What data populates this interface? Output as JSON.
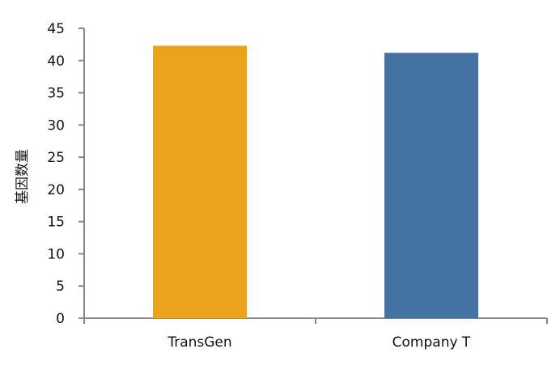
{
  "chart_data": {
    "type": "bar",
    "title": "",
    "xlabel": "",
    "ylabel": "基因数量",
    "categories": [
      "TransGen",
      "Company T"
    ],
    "values": [
      42.3,
      41.2
    ],
    "colors": [
      "#EBA31E",
      "#4472A1"
    ],
    "ylim": [
      0,
      45
    ],
    "yticks": [
      0,
      5,
      10,
      15,
      20,
      25,
      30,
      35,
      40,
      45
    ],
    "grid": false,
    "legend": "none",
    "axis_color": "#888888"
  }
}
